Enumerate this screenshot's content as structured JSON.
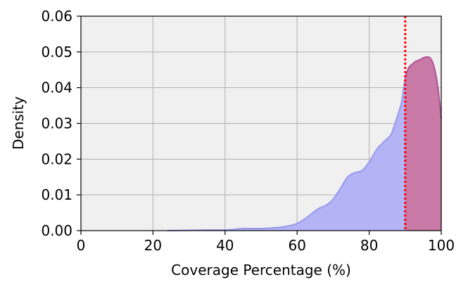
{
  "chart_data": {
    "type": "area",
    "title": "",
    "xlabel": "Coverage Percentage (%)",
    "ylabel": "Density",
    "xlim": [
      0,
      100
    ],
    "ylim": [
      0,
      0.06
    ],
    "xticks": [
      0,
      20,
      40,
      60,
      80,
      100
    ],
    "yticks": [
      0.0,
      0.01,
      0.02,
      0.03,
      0.04,
      0.05,
      0.06
    ],
    "xtick_labels": [
      "0",
      "20",
      "40",
      "60",
      "80",
      "100"
    ],
    "ytick_labels": [
      "0.00",
      "0.01",
      "0.02",
      "0.03",
      "0.04",
      "0.05",
      "0.06"
    ],
    "grid": true,
    "threshold": {
      "x": 90,
      "line_style": "dotted",
      "color": "#ff0000"
    },
    "series": [
      {
        "x": [
          24,
          30,
          35,
          40,
          43,
          45,
          50,
          55,
          58,
          60,
          62,
          64,
          66,
          68,
          70,
          72,
          74,
          76,
          78,
          80,
          82,
          84,
          86,
          87,
          88,
          89,
          90,
          91,
          92,
          93,
          94,
          95,
          96,
          97,
          98,
          99,
          100
        ],
        "y": [
          0.0,
          0.0001,
          0.0002,
          0.0002,
          0.0004,
          0.0006,
          0.0006,
          0.0009,
          0.0014,
          0.002,
          0.0032,
          0.0047,
          0.0062,
          0.0071,
          0.0088,
          0.0118,
          0.015,
          0.0162,
          0.0168,
          0.0192,
          0.0226,
          0.0248,
          0.0268,
          0.0295,
          0.0325,
          0.036,
          0.0428,
          0.0456,
          0.0466,
          0.0474,
          0.0478,
          0.0483,
          0.0486,
          0.0482,
          0.0458,
          0.0405,
          0.0313
        ],
        "fill_color": "#b3b3f5",
        "line_color": "#9999ee",
        "highlight_fill_color": "#c97aa6",
        "highlight_line_color": "#b55394"
      }
    ]
  }
}
